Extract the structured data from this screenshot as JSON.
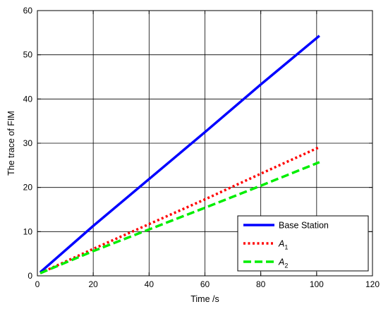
{
  "chart_data": {
    "type": "line",
    "title": "",
    "xlabel": "Time /s",
    "ylabel": "The trace of FIM",
    "xlim": [
      0,
      120
    ],
    "ylim": [
      0,
      60
    ],
    "xticks": [
      0,
      20,
      40,
      60,
      80,
      100,
      120
    ],
    "yticks": [
      0,
      10,
      20,
      30,
      40,
      50,
      60
    ],
    "grid": true,
    "legend_position": "bottom-right",
    "series": [
      {
        "name": "Base Station",
        "color": "#0000ff",
        "style": "solid",
        "x": [
          1,
          20,
          40,
          60,
          80,
          101
        ],
        "y": [
          0.8,
          11.3,
          21.9,
          32.5,
          43.3,
          54.3
        ]
      },
      {
        "name": "A",
        "name_sub": "1",
        "color": "#ff0000",
        "style": "dotted",
        "x": [
          1,
          20,
          40,
          60,
          80,
          101
        ],
        "y": [
          0.6,
          6.1,
          11.7,
          17.3,
          23.1,
          29.1
        ]
      },
      {
        "name": "A",
        "name_sub": "2",
        "color": "#00ee00",
        "style": "dashed",
        "x": [
          1,
          20,
          40,
          60,
          80,
          101
        ],
        "y": [
          0.6,
          5.6,
          10.5,
          15.4,
          20.4,
          25.7
        ]
      }
    ]
  }
}
